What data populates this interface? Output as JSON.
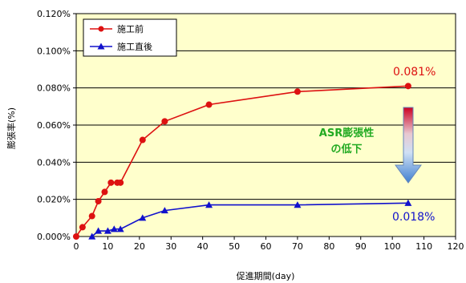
{
  "chart_data": {
    "type": "line",
    "xlabel": "促進期間(day)",
    "ylabel": "膨張率(%)",
    "xlim": [
      0,
      120
    ],
    "ylim": [
      0,
      0.12
    ],
    "x_ticks": [
      "0",
      "10",
      "20",
      "30",
      "40",
      "50",
      "60",
      "70",
      "80",
      "90",
      "100",
      "110",
      "120"
    ],
    "y_ticks": [
      "0.000%",
      "0.020%",
      "0.040%",
      "0.060%",
      "0.080%",
      "0.100%",
      "0.120%"
    ],
    "grid": "horizontal",
    "legend_position": "top-left",
    "plot_background": "#ffffcc",
    "series": [
      {
        "name": "施工前",
        "color": "#dd1111",
        "marker": "circle",
        "x": [
          0,
          2,
          5,
          7,
          9,
          11,
          13,
          14,
          21,
          28,
          42,
          70,
          105
        ],
        "y": [
          0.0,
          0.005,
          0.011,
          0.019,
          0.024,
          0.029,
          0.029,
          0.029,
          0.052,
          0.062,
          0.071,
          0.078,
          0.081
        ],
        "end_label": "0.081%"
      },
      {
        "name": "施工直後",
        "color": "#1111cc",
        "marker": "triangle",
        "x": [
          5,
          7,
          10,
          12,
          14,
          21,
          28,
          42,
          70,
          105
        ],
        "y": [
          0.0,
          0.003,
          0.003,
          0.004,
          0.004,
          0.01,
          0.014,
          0.017,
          0.017,
          0.018
        ],
        "end_label": "0.018%"
      }
    ],
    "annotation": {
      "lines": [
        "ASR膨張性",
        "の低下"
      ],
      "color": "#22aa22"
    }
  }
}
